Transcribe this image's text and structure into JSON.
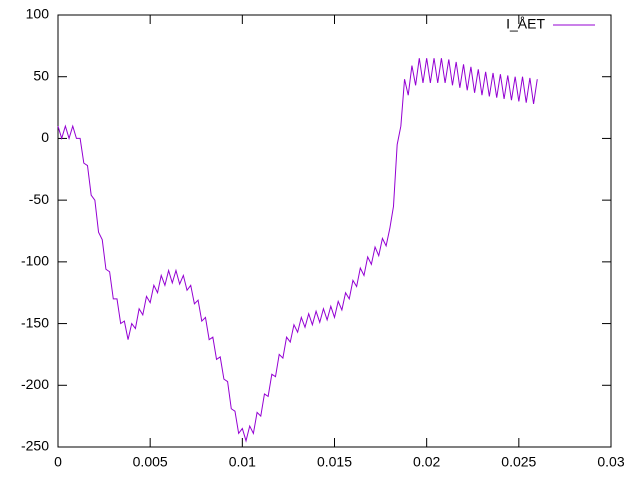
{
  "chart_data": {
    "type": "line",
    "x": [
      0,
      0.0002,
      0.0004,
      0.0006,
      0.0008,
      0.001,
      0.0012,
      0.0014,
      0.0016,
      0.0018,
      0.002,
      0.0022,
      0.0024,
      0.0026,
      0.0028,
      0.003,
      0.0032,
      0.0034,
      0.0036,
      0.0038,
      0.004,
      0.0042,
      0.0044,
      0.0046,
      0.0048,
      0.005,
      0.0052,
      0.0054,
      0.0056,
      0.0058,
      0.006,
      0.0062,
      0.0064,
      0.0066,
      0.0068,
      0.007,
      0.0072,
      0.0074,
      0.0076,
      0.0078,
      0.008,
      0.0082,
      0.0084,
      0.0086,
      0.0088,
      0.009,
      0.0092,
      0.0094,
      0.0096,
      0.0098,
      0.01,
      0.0102,
      0.0104,
      0.0106,
      0.0108,
      0.011,
      0.0112,
      0.0114,
      0.0116,
      0.0118,
      0.012,
      0.0122,
      0.0124,
      0.0126,
      0.0128,
      0.013,
      0.0132,
      0.0134,
      0.0136,
      0.0138,
      0.014,
      0.0142,
      0.0144,
      0.0146,
      0.0148,
      0.015,
      0.0152,
      0.0154,
      0.0156,
      0.0158,
      0.016,
      0.0162,
      0.0164,
      0.0166,
      0.0168,
      0.017,
      0.0172,
      0.0174,
      0.0176,
      0.0178,
      0.018,
      0.0182,
      0.0184,
      0.0186,
      0.0188,
      0.019,
      0.0192,
      0.0194,
      0.0196,
      0.0198,
      0.02,
      0.0202,
      0.0204,
      0.0206,
      0.0208,
      0.021,
      0.0212,
      0.0214,
      0.0216,
      0.0218,
      0.022,
      0.0222,
      0.0224,
      0.0226,
      0.0228,
      0.023,
      0.0232,
      0.0234,
      0.0236,
      0.0238,
      0.024,
      0.0242,
      0.0244,
      0.0246,
      0.0248,
      0.025,
      0.0252,
      0.0254,
      0.0256,
      0.0258,
      0.026
    ],
    "series": [
      {
        "name": "I_ÅET",
        "color": "#9400d3",
        "values": [
          10,
          0,
          10,
          0,
          10,
          0,
          0,
          -20,
          -22,
          -46,
          -50,
          -76,
          -82,
          -106,
          -108,
          -130,
          -130,
          -150,
          -148,
          -163,
          -150,
          -154,
          -138,
          -143,
          -128,
          -133,
          -119,
          -125,
          -111,
          -119,
          -107,
          -117,
          -107,
          -118,
          -111,
          -123,
          -119,
          -134,
          -131,
          -148,
          -145,
          -163,
          -161,
          -179,
          -177,
          -195,
          -197,
          -219,
          -221,
          -239,
          -235,
          -245,
          -233,
          -239,
          -222,
          -225,
          -207,
          -209,
          -191,
          -193,
          -175,
          -178,
          -161,
          -165,
          -151,
          -157,
          -145,
          -153,
          -142,
          -151,
          -140,
          -149,
          -138,
          -147,
          -136,
          -145,
          -132,
          -139,
          -125,
          -130,
          -115,
          -120,
          -105,
          -111,
          -96,
          -102,
          -88,
          -95,
          -81,
          -87,
          -73,
          -55,
          -5,
          10,
          48,
          35,
          59,
          43,
          65,
          45,
          65,
          45,
          65,
          45,
          65,
          45,
          64,
          43,
          62,
          41,
          60,
          39,
          58,
          37,
          56,
          35,
          54,
          34,
          53,
          33,
          52,
          32,
          51,
          31,
          50,
          30,
          50,
          29,
          49,
          28,
          48
        ]
      }
    ],
    "xlim": [
      0,
      0.03
    ],
    "xticks": [
      0,
      0.005,
      0.01,
      0.015,
      0.02,
      0.025,
      0.03
    ],
    "ylim": [
      -250,
      100
    ],
    "yticks": [
      -250,
      -200,
      -150,
      -100,
      -50,
      0,
      50,
      100
    ],
    "legend": "top-right"
  }
}
